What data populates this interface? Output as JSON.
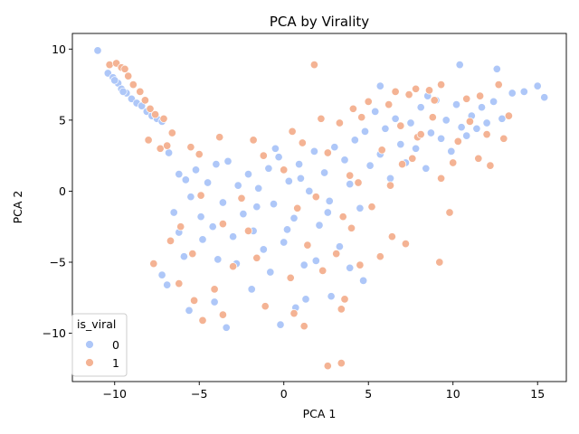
{
  "chart_data": {
    "type": "scatter",
    "title": "PCA by Virality",
    "xlabel": "PCA 1",
    "ylabel": "PCA 2",
    "xlim": [
      -12.5,
      16.7
    ],
    "ylim": [
      -13.4,
      11.1
    ],
    "xticks": [
      -10,
      -5,
      0,
      5,
      10,
      15
    ],
    "yticks": [
      -10,
      -5,
      0,
      5,
      10
    ],
    "grid": false,
    "legend": {
      "title": "is_viral",
      "placement": "lower-left",
      "entries": [
        "0",
        "1"
      ]
    },
    "colors": {
      "0": "#aec7f8",
      "1": "#f4b394",
      "edge": "#ffffff"
    },
    "series": [
      {
        "name": "0",
        "points": [
          [
            -11.0,
            9.9
          ],
          [
            -10.4,
            8.3
          ],
          [
            -10.1,
            8.0
          ],
          [
            -9.8,
            7.6
          ],
          [
            -9.6,
            7.2
          ],
          [
            -9.3,
            6.9
          ],
          [
            -9.0,
            6.5
          ],
          [
            -8.7,
            6.2
          ],
          [
            -8.4,
            6.0
          ],
          [
            -8.1,
            5.6
          ],
          [
            -7.8,
            5.3
          ],
          [
            -7.5,
            5.1
          ],
          [
            -7.2,
            4.9
          ],
          [
            -6.8,
            2.7
          ],
          [
            -10.0,
            7.8
          ],
          [
            -9.5,
            7.0
          ],
          [
            -6.2,
            1.2
          ],
          [
            -5.8,
            0.8
          ],
          [
            -5.5,
            -0.4
          ],
          [
            -5.2,
            1.5
          ],
          [
            -4.9,
            -1.8
          ],
          [
            -4.5,
            0.6
          ],
          [
            -4.2,
            -2.5
          ],
          [
            -4.0,
            1.9
          ],
          [
            -3.6,
            -0.8
          ],
          [
            -3.3,
            2.1
          ],
          [
            -3.0,
            -3.2
          ],
          [
            -2.7,
            0.4
          ],
          [
            -2.4,
            -1.6
          ],
          [
            -2.1,
            1.2
          ],
          [
            -1.8,
            -2.8
          ],
          [
            -1.5,
            0.2
          ],
          [
            -1.2,
            -4.1
          ],
          [
            -0.9,
            1.6
          ],
          [
            -0.6,
            -0.9
          ],
          [
            -0.3,
            2.4
          ],
          [
            0.0,
            -3.6
          ],
          [
            0.3,
            0.7
          ],
          [
            0.6,
            -1.9
          ],
          [
            0.9,
            1.9
          ],
          [
            1.2,
            -5.2
          ],
          [
            1.5,
            0.0
          ],
          [
            1.8,
            2.8
          ],
          [
            2.1,
            -2.4
          ],
          [
            2.4,
            1.3
          ],
          [
            2.7,
            -0.7
          ],
          [
            3.0,
            3.1
          ],
          [
            3.3,
            -3.9
          ],
          [
            3.6,
            2.2
          ],
          [
            3.9,
            0.5
          ],
          [
            4.2,
            3.6
          ],
          [
            4.5,
            -1.2
          ],
          [
            4.8,
            4.2
          ],
          [
            5.1,
            1.8
          ],
          [
            5.4,
            5.6
          ],
          [
            5.7,
            2.6
          ],
          [
            6.0,
            4.4
          ],
          [
            6.3,
            0.9
          ],
          [
            6.6,
            5.1
          ],
          [
            6.9,
            3.3
          ],
          [
            7.2,
            2.0
          ],
          [
            7.5,
            4.8
          ],
          [
            7.8,
            3.0
          ],
          [
            8.1,
            5.9
          ],
          [
            8.4,
            1.6
          ],
          [
            8.7,
            4.1
          ],
          [
            9.0,
            6.4
          ],
          [
            9.3,
            3.7
          ],
          [
            9.6,
            5.0
          ],
          [
            9.9,
            2.8
          ],
          [
            10.2,
            6.1
          ],
          [
            10.5,
            4.5
          ],
          [
            10.8,
            3.9
          ],
          [
            11.1,
            5.3
          ],
          [
            11.4,
            4.4
          ],
          [
            11.7,
            5.9
          ],
          [
            12.0,
            4.8
          ],
          [
            12.4,
            6.3
          ],
          [
            12.9,
            5.1
          ],
          [
            13.5,
            6.9
          ],
          [
            14.2,
            7.0
          ],
          [
            15.0,
            7.4
          ],
          [
            15.4,
            6.6
          ],
          [
            10.4,
            8.9
          ],
          [
            12.6,
            8.6
          ],
          [
            5.7,
            7.4
          ],
          [
            8.5,
            6.7
          ],
          [
            1.3,
            -7.6
          ],
          [
            -0.2,
            -9.4
          ],
          [
            -3.4,
            -9.6
          ],
          [
            -5.6,
            -8.4
          ],
          [
            -6.9,
            -6.6
          ],
          [
            -7.2,
            -5.9
          ],
          [
            -4.1,
            -7.8
          ],
          [
            -1.9,
            -6.9
          ],
          [
            0.7,
            -8.2
          ],
          [
            2.8,
            -7.4
          ],
          [
            4.7,
            -6.3
          ],
          [
            3.9,
            -5.4
          ],
          [
            -2.8,
            -5.1
          ],
          [
            -5.9,
            -4.6
          ],
          [
            -6.5,
            -1.5
          ],
          [
            -6.2,
            -2.9
          ],
          [
            -4.8,
            -3.4
          ],
          [
            -3.9,
            -4.8
          ],
          [
            -0.8,
            -5.7
          ],
          [
            1.9,
            -4.9
          ],
          [
            0.2,
            -2.7
          ],
          [
            -1.6,
            -1.1
          ],
          [
            2.6,
            -1.5
          ],
          [
            1.0,
            0.9
          ],
          [
            -0.5,
            3.0
          ]
        ]
      },
      {
        "name": "1",
        "points": [
          [
            -10.3,
            8.9
          ],
          [
            -9.9,
            9.0
          ],
          [
            -9.6,
            8.7
          ],
          [
            -9.2,
            8.1
          ],
          [
            -8.9,
            7.5
          ],
          [
            -8.5,
            7.0
          ],
          [
            -8.2,
            6.4
          ],
          [
            -7.9,
            5.8
          ],
          [
            -7.6,
            5.4
          ],
          [
            -7.1,
            5.1
          ],
          [
            -6.6,
            4.1
          ],
          [
            -7.3,
            3.0
          ],
          [
            -8.0,
            3.6
          ],
          [
            -6.9,
            3.2
          ],
          [
            -5.5,
            3.1
          ],
          [
            -9.4,
            8.6
          ],
          [
            1.8,
            8.9
          ],
          [
            3.3,
            4.8
          ],
          [
            4.6,
            5.2
          ],
          [
            6.2,
            6.1
          ],
          [
            7.4,
            6.8
          ],
          [
            8.6,
            7.1
          ],
          [
            9.3,
            7.5
          ],
          [
            10.8,
            6.5
          ],
          [
            11.6,
            6.7
          ],
          [
            12.7,
            7.5
          ],
          [
            13.3,
            5.3
          ],
          [
            12.2,
            1.8
          ],
          [
            11.5,
            2.3
          ],
          [
            10.0,
            2.0
          ],
          [
            9.3,
            0.9
          ],
          [
            9.8,
            -1.5
          ],
          [
            9.2,
            -5.0
          ],
          [
            7.2,
            -3.7
          ],
          [
            6.4,
            -3.2
          ],
          [
            5.7,
            -4.6
          ],
          [
            4.5,
            -5.2
          ],
          [
            3.6,
            -7.6
          ],
          [
            3.4,
            -8.3
          ],
          [
            2.6,
            -12.3
          ],
          [
            3.4,
            -12.1
          ],
          [
            1.2,
            -9.5
          ],
          [
            0.6,
            -8.6
          ],
          [
            -1.1,
            -8.1
          ],
          [
            -3.6,
            -8.7
          ],
          [
            -4.8,
            -9.1
          ],
          [
            -5.3,
            -7.7
          ],
          [
            -6.2,
            -6.5
          ],
          [
            -4.1,
            -6.9
          ],
          [
            -3.0,
            -5.3
          ],
          [
            -1.6,
            -4.7
          ],
          [
            0.4,
            -6.1
          ],
          [
            1.4,
            -3.8
          ],
          [
            2.3,
            -5.6
          ],
          [
            3.1,
            -4.4
          ],
          [
            4.0,
            -2.6
          ],
          [
            5.2,
            -1.1
          ],
          [
            6.3,
            0.4
          ],
          [
            7.0,
            1.9
          ],
          [
            7.9,
            3.8
          ],
          [
            8.8,
            5.2
          ],
          [
            3.9,
            1.1
          ],
          [
            2.6,
            2.7
          ],
          [
            1.1,
            3.4
          ],
          [
            0.0,
            1.5
          ],
          [
            -1.2,
            2.5
          ],
          [
            -2.5,
            -0.5
          ],
          [
            -3.6,
            -2.3
          ],
          [
            -4.9,
            -0.3
          ],
          [
            -6.1,
            -2.5
          ],
          [
            -5.4,
            -4.4
          ],
          [
            -2.1,
            -2.8
          ],
          [
            0.8,
            -1.2
          ],
          [
            1.9,
            -0.4
          ],
          [
            3.5,
            -1.8
          ],
          [
            4.4,
            0.6
          ],
          [
            5.8,
            2.9
          ],
          [
            6.9,
            4.6
          ],
          [
            8.1,
            4.0
          ],
          [
            7.6,
            2.3
          ],
          [
            -7.7,
            -5.1
          ],
          [
            -6.7,
            -3.5
          ],
          [
            -5.0,
            2.6
          ],
          [
            -3.8,
            3.8
          ],
          [
            -1.8,
            3.6
          ],
          [
            0.5,
            4.2
          ],
          [
            2.2,
            5.1
          ],
          [
            4.1,
            5.8
          ],
          [
            5.0,
            6.3
          ],
          [
            6.6,
            7.0
          ],
          [
            7.8,
            7.2
          ],
          [
            8.9,
            6.4
          ],
          [
            10.3,
            3.5
          ],
          [
            11.0,
            4.9
          ],
          [
            13.0,
            3.7
          ],
          [
            12.0,
            4.0
          ]
        ]
      }
    ]
  }
}
